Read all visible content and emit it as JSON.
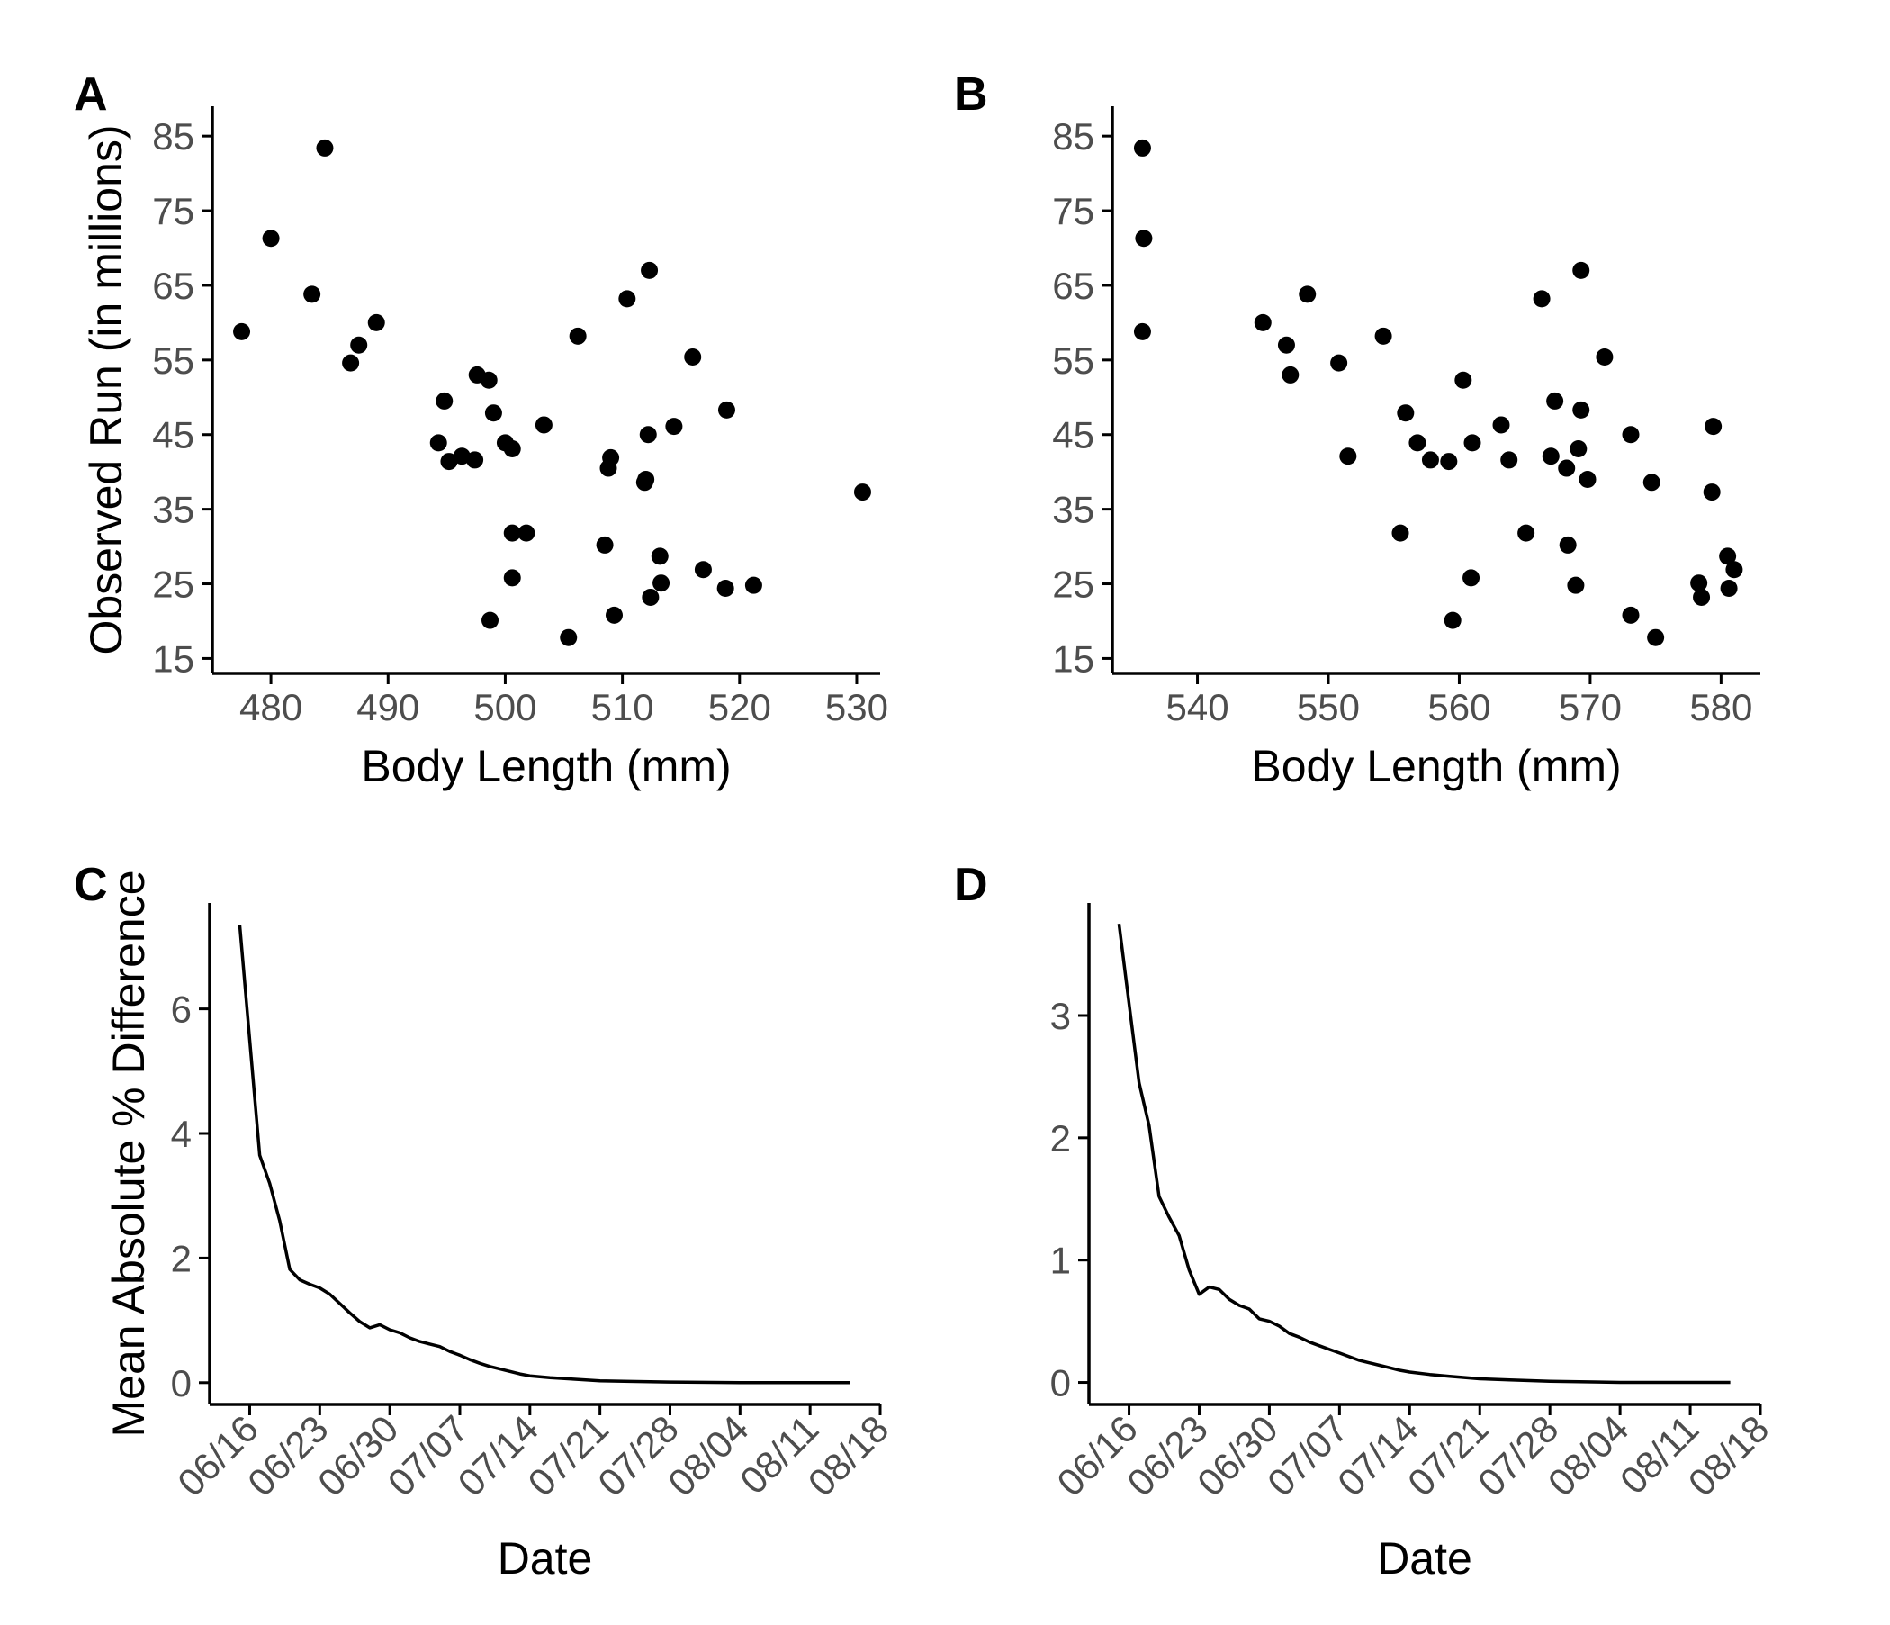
{
  "chart_data": [
    {
      "panel": "A",
      "type": "scatter",
      "xlabel": "Body Length (mm)",
      "ylabel": "Observed Run (in millions)",
      "xlim": [
        475,
        532
      ],
      "ylim": [
        13,
        89
      ],
      "xticks": [
        480,
        490,
        500,
        510,
        520,
        530
      ],
      "yticks": [
        15,
        25,
        35,
        45,
        55,
        65,
        75,
        85
      ],
      "grid": false,
      "points": [
        {
          "x": 477.5,
          "y": 58.8
        },
        {
          "x": 480,
          "y": 71.3
        },
        {
          "x": 483.5,
          "y": 63.8
        },
        {
          "x": 484.6,
          "y": 83.4
        },
        {
          "x": 486.8,
          "y": 54.6
        },
        {
          "x": 487.5,
          "y": 57.0
        },
        {
          "x": 489,
          "y": 60.0
        },
        {
          "x": 494.3,
          "y": 43.9
        },
        {
          "x": 494.8,
          "y": 49.5
        },
        {
          "x": 495.2,
          "y": 41.4
        },
        {
          "x": 496.3,
          "y": 42.1
        },
        {
          "x": 497.4,
          "y": 41.6
        },
        {
          "x": 497.6,
          "y": 53.0
        },
        {
          "x": 498.6,
          "y": 52.3
        },
        {
          "x": 499,
          "y": 47.9
        },
        {
          "x": 498.7,
          "y": 20.1
        },
        {
          "x": 500,
          "y": 43.9
        },
        {
          "x": 500.6,
          "y": 43.1
        },
        {
          "x": 500.6,
          "y": 31.8
        },
        {
          "x": 500.6,
          "y": 25.8
        },
        {
          "x": 501.8,
          "y": 31.8
        },
        {
          "x": 503.3,
          "y": 46.3
        },
        {
          "x": 505.4,
          "y": 17.8
        },
        {
          "x": 506.2,
          "y": 58.2
        },
        {
          "x": 508.5,
          "y": 30.2
        },
        {
          "x": 508.8,
          "y": 40.5
        },
        {
          "x": 509,
          "y": 41.9
        },
        {
          "x": 509.3,
          "y": 20.8
        },
        {
          "x": 510.4,
          "y": 63.2
        },
        {
          "x": 511.9,
          "y": 38.6
        },
        {
          "x": 512,
          "y": 39.0
        },
        {
          "x": 512.2,
          "y": 45.0
        },
        {
          "x": 512.3,
          "y": 67.0
        },
        {
          "x": 512.4,
          "y": 23.2
        },
        {
          "x": 513.2,
          "y": 28.7
        },
        {
          "x": 513.3,
          "y": 25.1
        },
        {
          "x": 514.4,
          "y": 46.1
        },
        {
          "x": 516,
          "y": 55.4
        },
        {
          "x": 516.9,
          "y": 26.9
        },
        {
          "x": 518.9,
          "y": 48.3
        },
        {
          "x": 518.8,
          "y": 24.4
        },
        {
          "x": 521.2,
          "y": 24.8
        },
        {
          "x": 530.5,
          "y": 37.3
        }
      ]
    },
    {
      "panel": "B",
      "type": "scatter",
      "xlabel": "Body Length (mm)",
      "ylabel": "",
      "xlim": [
        533.5,
        583
      ],
      "ylim": [
        13,
        89
      ],
      "xticks": [
        540,
        550,
        560,
        570,
        580
      ],
      "yticks": [
        15,
        25,
        35,
        45,
        55,
        65,
        75,
        85
      ],
      "grid": false,
      "points": [
        {
          "x": 535.8,
          "y": 83.4
        },
        {
          "x": 535.9,
          "y": 71.3
        },
        {
          "x": 535.8,
          "y": 58.8
        },
        {
          "x": 545,
          "y": 60.0
        },
        {
          "x": 546.8,
          "y": 57.0
        },
        {
          "x": 547.1,
          "y": 53.0
        },
        {
          "x": 548.4,
          "y": 63.8
        },
        {
          "x": 550.8,
          "y": 54.6
        },
        {
          "x": 551.5,
          "y": 42.1
        },
        {
          "x": 554.2,
          "y": 58.2
        },
        {
          "x": 555.5,
          "y": 31.8
        },
        {
          "x": 555.9,
          "y": 47.9
        },
        {
          "x": 556.8,
          "y": 43.9
        },
        {
          "x": 557.8,
          "y": 41.6
        },
        {
          "x": 559.2,
          "y": 41.4
        },
        {
          "x": 559.5,
          "y": 20.1
        },
        {
          "x": 560.3,
          "y": 52.3
        },
        {
          "x": 561,
          "y": 43.9
        },
        {
          "x": 560.9,
          "y": 25.8
        },
        {
          "x": 563.2,
          "y": 46.3
        },
        {
          "x": 563.8,
          "y": 41.6
        },
        {
          "x": 565.1,
          "y": 31.8
        },
        {
          "x": 566.3,
          "y": 63.2
        },
        {
          "x": 567,
          "y": 42.1
        },
        {
          "x": 567.3,
          "y": 49.5
        },
        {
          "x": 568.2,
          "y": 40.5
        },
        {
          "x": 568.3,
          "y": 30.2
        },
        {
          "x": 568.9,
          "y": 24.8
        },
        {
          "x": 569.1,
          "y": 43.1
        },
        {
          "x": 569.3,
          "y": 48.3
        },
        {
          "x": 569.3,
          "y": 67.0
        },
        {
          "x": 569.8,
          "y": 39.0
        },
        {
          "x": 571.1,
          "y": 55.4
        },
        {
          "x": 573.1,
          "y": 45.0
        },
        {
          "x": 573.1,
          "y": 20.8
        },
        {
          "x": 574.7,
          "y": 38.6
        },
        {
          "x": 575,
          "y": 17.8
        },
        {
          "x": 578.3,
          "y": 25.1
        },
        {
          "x": 578.5,
          "y": 23.2
        },
        {
          "x": 579.3,
          "y": 37.3
        },
        {
          "x": 579.4,
          "y": 46.1
        },
        {
          "x": 580.5,
          "y": 28.7
        },
        {
          "x": 580.6,
          "y": 24.4
        },
        {
          "x": 581,
          "y": 26.9
        }
      ]
    },
    {
      "panel": "C",
      "type": "line",
      "xlabel": "Date",
      "ylabel": "Mean Absolute % Difference",
      "x_type": "date",
      "xlim": [
        "06/12",
        "08/18"
      ],
      "ylim": [
        -0.35,
        7.7
      ],
      "xticks": [
        "06/16",
        "06/23",
        "06/30",
        "07/07",
        "07/14",
        "07/21",
        "07/28",
        "08/04",
        "08/11",
        "08/18"
      ],
      "yticks": [
        0,
        2,
        4,
        6
      ],
      "grid": false,
      "series": [
        {
          "points": [
            [
              "06/15",
              7.35
            ],
            [
              "06/16",
              5.5
            ],
            [
              "06/17",
              3.65
            ],
            [
              "06/18",
              3.2
            ],
            [
              "06/19",
              2.6
            ],
            [
              "06/20",
              1.82
            ],
            [
              "06/21",
              1.65
            ],
            [
              "06/22",
              1.58
            ],
            [
              "06/23",
              1.52
            ],
            [
              "06/24",
              1.42
            ],
            [
              "06/25",
              1.27
            ],
            [
              "06/26",
              1.12
            ],
            [
              "06/27",
              0.98
            ],
            [
              "06/28",
              0.88
            ],
            [
              "06/29",
              0.93
            ],
            [
              "06/30",
              0.85
            ],
            [
              "07/01",
              0.8
            ],
            [
              "07/02",
              0.72
            ],
            [
              "07/03",
              0.66
            ],
            [
              "07/04",
              0.62
            ],
            [
              "07/05",
              0.58
            ],
            [
              "07/06",
              0.5
            ],
            [
              "07/07",
              0.44
            ],
            [
              "07/08",
              0.37
            ],
            [
              "07/09",
              0.31
            ],
            [
              "07/10",
              0.26
            ],
            [
              "07/11",
              0.22
            ],
            [
              "07/12",
              0.18
            ],
            [
              "07/13",
              0.14
            ],
            [
              "07/14",
              0.11
            ],
            [
              "07/16",
              0.08
            ],
            [
              "07/18",
              0.06
            ],
            [
              "07/21",
              0.03
            ],
            [
              "07/24",
              0.02
            ],
            [
              "07/28",
              0.01
            ],
            [
              "08/04",
              0.0
            ],
            [
              "08/15",
              0.0
            ]
          ]
        }
      ]
    },
    {
      "panel": "D",
      "type": "line",
      "xlabel": "Date",
      "ylabel": "",
      "x_type": "date",
      "xlim": [
        "06/12",
        "08/18"
      ],
      "ylim": [
        -0.18,
        3.92
      ],
      "xticks": [
        "06/16",
        "06/23",
        "06/30",
        "07/07",
        "07/14",
        "07/21",
        "07/28",
        "08/04",
        "08/11",
        "08/18"
      ],
      "yticks": [
        0,
        1,
        2,
        3
      ],
      "grid": false,
      "series": [
        {
          "points": [
            [
              "06/15",
              3.75
            ],
            [
              "06/16",
              3.1
            ],
            [
              "06/17",
              2.45
            ],
            [
              "06/18",
              2.1
            ],
            [
              "06/19",
              1.52
            ],
            [
              "06/20",
              1.35
            ],
            [
              "06/21",
              1.2
            ],
            [
              "06/22",
              0.92
            ],
            [
              "06/23",
              0.72
            ],
            [
              "06/24",
              0.78
            ],
            [
              "06/25",
              0.76
            ],
            [
              "06/26",
              0.68
            ],
            [
              "06/27",
              0.63
            ],
            [
              "06/28",
              0.6
            ],
            [
              "06/29",
              0.52
            ],
            [
              "06/30",
              0.5
            ],
            [
              "07/01",
              0.46
            ],
            [
              "07/02",
              0.4
            ],
            [
              "07/03",
              0.37
            ],
            [
              "07/04",
              0.33
            ],
            [
              "07/05",
              0.3
            ],
            [
              "07/06",
              0.27
            ],
            [
              "07/07",
              0.24
            ],
            [
              "07/08",
              0.21
            ],
            [
              "07/09",
              0.18
            ],
            [
              "07/10",
              0.16
            ],
            [
              "07/11",
              0.14
            ],
            [
              "07/12",
              0.12
            ],
            [
              "07/13",
              0.1
            ],
            [
              "07/14",
              0.085
            ],
            [
              "07/16",
              0.065
            ],
            [
              "07/18",
              0.05
            ],
            [
              "07/21",
              0.03
            ],
            [
              "07/24",
              0.02
            ],
            [
              "07/28",
              0.01
            ],
            [
              "08/04",
              0.0
            ],
            [
              "08/15",
              0.0
            ]
          ]
        }
      ]
    }
  ]
}
